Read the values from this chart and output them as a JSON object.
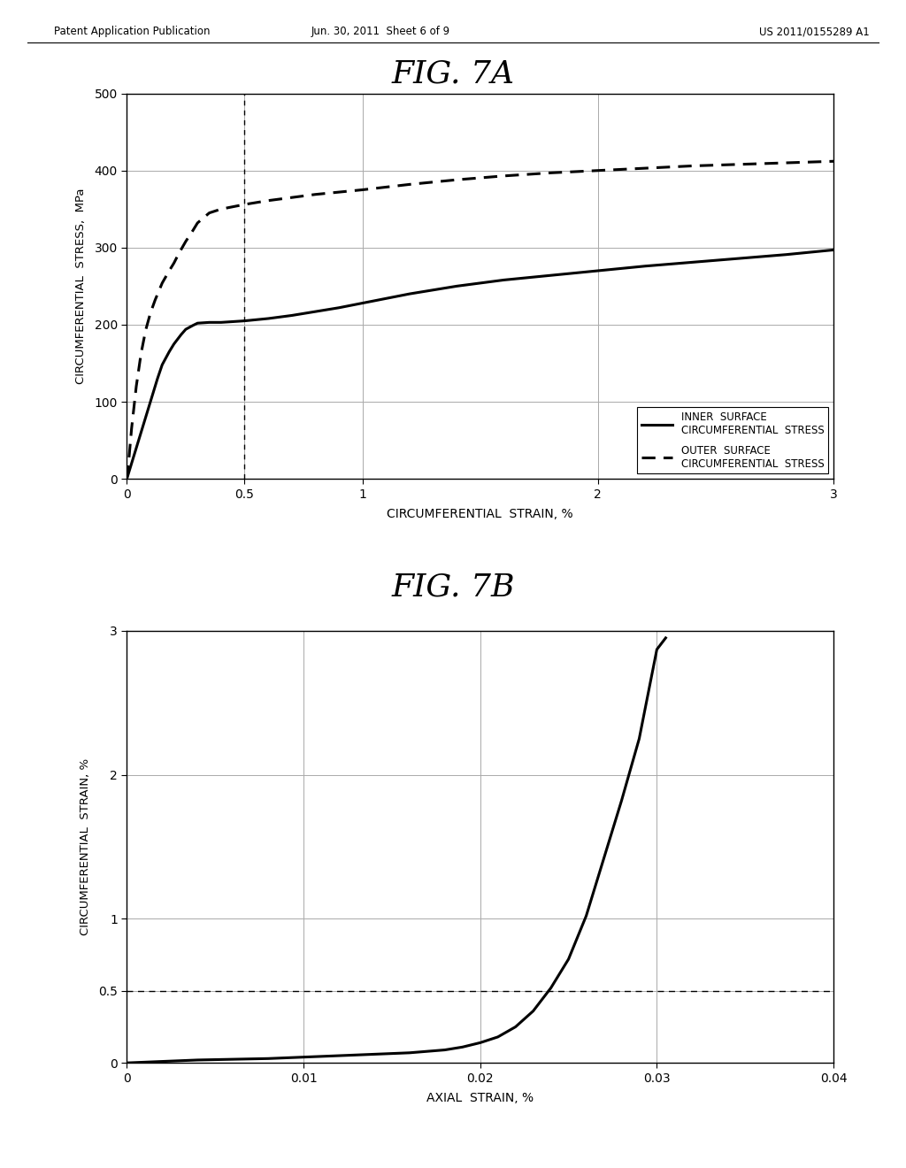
{
  "header_left": "Patent Application Publication",
  "header_mid": "Jun. 30, 2011  Sheet 6 of 9",
  "header_right": "US 2011/0155289 A1",
  "fig7a_title": "FIG. 7A",
  "fig7b_title": "FIG. 7B",
  "fig7a": {
    "xlabel": "CIRCUMFERENTIAL  STRAIN, %",
    "ylabel": "CIRCUMFERENTIAL  STRESS,  MPa",
    "xlim": [
      0,
      3
    ],
    "ylim": [
      0,
      500
    ],
    "xticks": [
      0,
      0.5,
      1,
      2,
      3
    ],
    "xticklabels": [
      "0",
      "0.5",
      "1",
      "2",
      "3"
    ],
    "yticks": [
      0,
      100,
      200,
      300,
      400,
      500
    ],
    "yticklabels": [
      "0",
      "100",
      "200",
      "300",
      "400",
      "500"
    ],
    "dashed_vline_x": 0.5,
    "inner_x": [
      0,
      0.02,
      0.05,
      0.08,
      0.1,
      0.13,
      0.15,
      0.18,
      0.2,
      0.23,
      0.25,
      0.28,
      0.3,
      0.35,
      0.4,
      0.45,
      0.5,
      0.6,
      0.7,
      0.8,
      0.9,
      1.0,
      1.2,
      1.4,
      1.6,
      1.8,
      2.0,
      2.2,
      2.4,
      2.6,
      2.8,
      3.0
    ],
    "inner_y": [
      0,
      20,
      50,
      80,
      100,
      130,
      148,
      165,
      175,
      187,
      194,
      199,
      202,
      203,
      203,
      204,
      205,
      208,
      212,
      217,
      222,
      228,
      240,
      250,
      258,
      264,
      270,
      276,
      281,
      286,
      291,
      297
    ],
    "outer_x": [
      0,
      0.01,
      0.02,
      0.04,
      0.06,
      0.08,
      0.1,
      0.12,
      0.15,
      0.18,
      0.2,
      0.22,
      0.25,
      0.28,
      0.3,
      0.35,
      0.4,
      0.45,
      0.5,
      0.6,
      0.7,
      0.8,
      0.9,
      1.0,
      1.2,
      1.4,
      1.6,
      1.8,
      2.0,
      2.2,
      2.4,
      2.6,
      2.8,
      3.0
    ],
    "outer_y": [
      0,
      30,
      65,
      120,
      162,
      193,
      215,
      232,
      254,
      270,
      280,
      292,
      308,
      322,
      332,
      345,
      350,
      353,
      356,
      361,
      365,
      369,
      372,
      375,
      382,
      388,
      393,
      397,
      400,
      403,
      406,
      408,
      410,
      412
    ],
    "legend_inner": "INNER  SURFACE\nCIRCUMFERENTIAL  STRESS",
    "legend_outer": "OUTER  SURFACE\nCIRCUMFERENTIAL  STRESS"
  },
  "fig7b": {
    "xlabel": "AXIAL  STRAIN, %",
    "ylabel": "CIRCUMFERENTIAL  STRAIN, %",
    "xlim": [
      0,
      0.04
    ],
    "ylim": [
      0,
      3
    ],
    "xticks": [
      0,
      0.01,
      0.02,
      0.03,
      0.04
    ],
    "xticklabels": [
      "0",
      "0.01",
      "0.02",
      "0.03",
      "0.04"
    ],
    "yticks": [
      0,
      0.5,
      1,
      2,
      3
    ],
    "yticklabels": [
      "0",
      "0.5",
      "1",
      "2",
      "3"
    ],
    "dashed_hline_y": 0.5,
    "curve_x": [
      0,
      0.001,
      0.002,
      0.004,
      0.006,
      0.008,
      0.01,
      0.012,
      0.014,
      0.016,
      0.018,
      0.019,
      0.02,
      0.021,
      0.022,
      0.023,
      0.024,
      0.025,
      0.026,
      0.027,
      0.028,
      0.029,
      0.03,
      0.0305
    ],
    "curve_y": [
      0,
      0.005,
      0.01,
      0.02,
      0.025,
      0.03,
      0.04,
      0.05,
      0.06,
      0.07,
      0.09,
      0.11,
      0.14,
      0.18,
      0.25,
      0.36,
      0.52,
      0.72,
      1.02,
      1.42,
      1.82,
      2.25,
      2.87,
      2.95
    ]
  },
  "bg_color": "#ffffff",
  "line_color": "#000000",
  "grid_color": "#aaaaaa"
}
